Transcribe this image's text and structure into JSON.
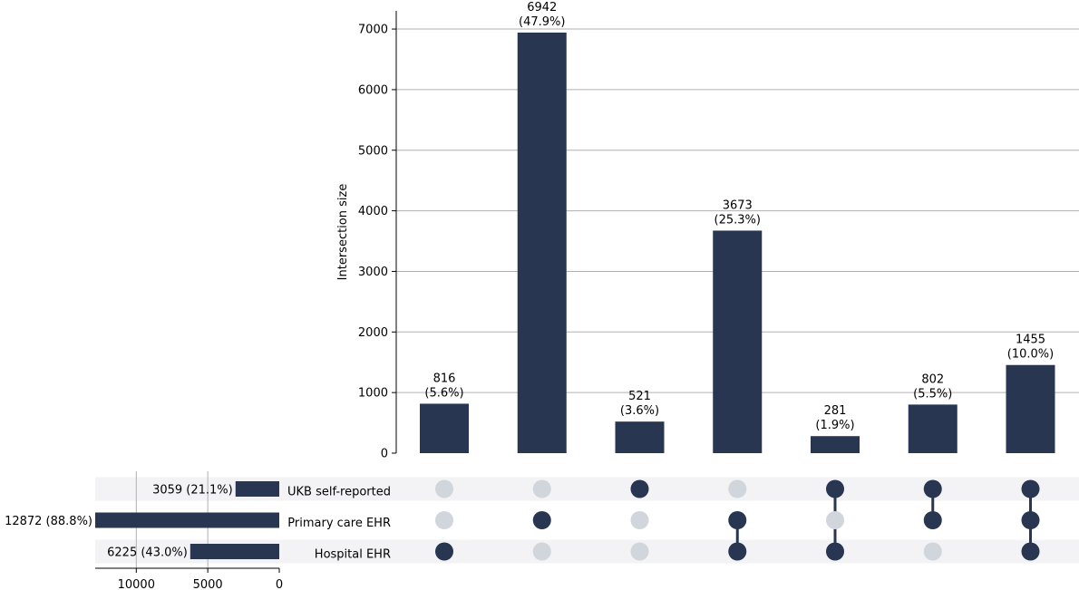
{
  "chart_data": {
    "type": "upset",
    "ylabel": "Intersection size",
    "ylim": [
      0,
      7300
    ],
    "yticks": [
      0,
      1000,
      2000,
      3000,
      4000,
      5000,
      6000,
      7000
    ],
    "grid": true,
    "colors": {
      "bar": "#283651",
      "inactive_dot": "#d1d5dc",
      "stripe": "#f3f3f5",
      "grid": "#b0b0b0"
    },
    "sets": [
      {
        "name": "UKB self-reported",
        "size": 3059,
        "size_label": "3059 (21.1%)"
      },
      {
        "name": "Primary care EHR",
        "size": 12872,
        "size_label": "12872 (88.8%)"
      },
      {
        "name": "Hospital EHR",
        "size": 6225,
        "size_label": "6225 (43.0%)"
      }
    ],
    "set_size_ticks": [
      10000,
      5000,
      0
    ],
    "set_size_xlim": [
      0,
      12872
    ],
    "intersections": [
      {
        "value": 816,
        "count_label": "816",
        "pct_label": "(5.6%)",
        "members": [
          false,
          false,
          true
        ]
      },
      {
        "value": 6942,
        "count_label": "6942",
        "pct_label": "(47.9%)",
        "members": [
          false,
          true,
          false
        ]
      },
      {
        "value": 521,
        "count_label": "521",
        "pct_label": "(3.6%)",
        "members": [
          true,
          false,
          false
        ]
      },
      {
        "value": 3673,
        "count_label": "3673",
        "pct_label": "(25.3%)",
        "members": [
          false,
          true,
          true
        ]
      },
      {
        "value": 281,
        "count_label": "281",
        "pct_label": "(1.9%)",
        "members": [
          true,
          false,
          true
        ]
      },
      {
        "value": 802,
        "count_label": "802",
        "pct_label": "(5.5%)",
        "members": [
          true,
          true,
          false
        ]
      },
      {
        "value": 1455,
        "count_label": "1455",
        "pct_label": "(10.0%)",
        "members": [
          true,
          true,
          true
        ]
      }
    ]
  }
}
